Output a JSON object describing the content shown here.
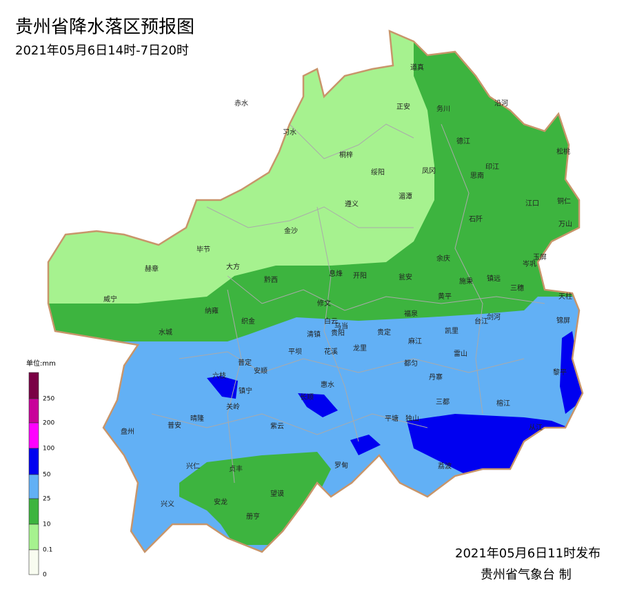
{
  "header": {
    "title": "贵州省降水落区预报图",
    "subtitle": "2021年05月6日14时-7日20时"
  },
  "legend": {
    "title": "单位:mm",
    "levels": [
      {
        "value": 250,
        "color": "#7a0045"
      },
      {
        "value": 200,
        "color": "#c8009a"
      },
      {
        "value": 100,
        "color": "#ff00ff"
      },
      {
        "value": 50,
        "color": "#0000f0"
      },
      {
        "value": 25,
        "color": "#62b0f5"
      },
      {
        "value": 10,
        "color": "#3db43f"
      },
      {
        "value": 0.1,
        "color": "#a6f28f"
      },
      {
        "value": 0,
        "color": "#f8fcf0"
      }
    ]
  },
  "places": [
    "赤水",
    "习水",
    "正安",
    "道真",
    "务川",
    "沿河",
    "桐梓",
    "绥阳",
    "凤冈",
    "德江",
    "印江",
    "思南",
    "松桃",
    "湄潭",
    "遵义",
    "江口",
    "铜仁",
    "石阡",
    "万山",
    "金沙",
    "毕节",
    "大方",
    "赫章",
    "余庆",
    "玉屏",
    "岑巩",
    "黔西",
    "息烽",
    "开阳",
    "瓮安",
    "施秉",
    "镇远",
    "三穗",
    "天柱",
    "威宁",
    "修文",
    "黄平",
    "剑河",
    "台江",
    "锦屏",
    "纳雍",
    "织金",
    "福泉",
    "白云",
    "乌当",
    "清镇",
    "贵阳",
    "贵定",
    "麻江",
    "凯里",
    "水城",
    "平坝",
    "花溪",
    "龙里",
    "雷山",
    "黎平",
    "普定",
    "安顺",
    "都匀",
    "六枝",
    "丹寨",
    "镇宁",
    "惠水",
    "长顺",
    "三都",
    "关岭",
    "榕江",
    "盘州",
    "普安",
    "晴隆",
    "紫云",
    "平塘",
    "独山",
    "从江",
    "兴仁",
    "贞丰",
    "罗甸",
    "荔波",
    "望谟",
    "安龙",
    "兴义",
    "册亨"
  ],
  "footer": {
    "issued": "2021年05月6日11时发布",
    "agency": "贵州省气象台 制"
  }
}
